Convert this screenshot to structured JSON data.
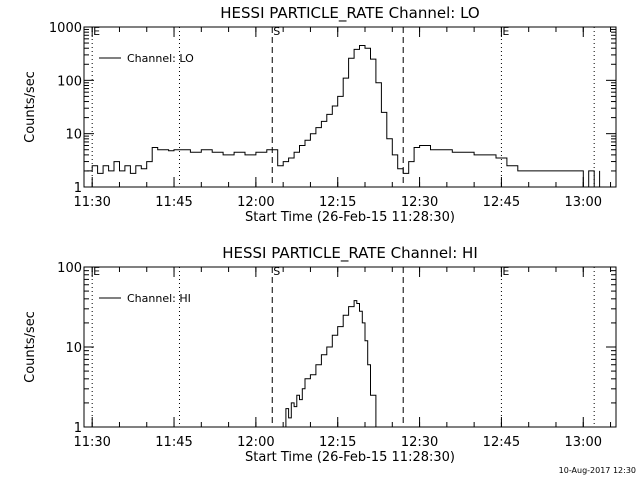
{
  "chart_data": [
    {
      "type": "line",
      "title": "HESSI PARTICLE_RATE Channel: LO",
      "xlabel": "Start Time (26-Feb-15 11:28:30)",
      "ylabel": "Counts/sec",
      "yscale": "log",
      "xlim": [
        "11:28:30",
        "13:06:00"
      ],
      "ylim": [
        1,
        1000
      ],
      "x_ticks": [
        "11:30",
        "11:45",
        "12:00",
        "12:15",
        "12:30",
        "12:45",
        "13:00"
      ],
      "y_ticks": [
        "1",
        "10",
        "100",
        "1000"
      ],
      "legend": "top-left",
      "markers": [
        {
          "label": "E",
          "time": "11:30",
          "style": "dotted"
        },
        {
          "label": "",
          "time": "11:46",
          "style": "dotted"
        },
        {
          "label": "S",
          "time": "12:03",
          "style": "dashed"
        },
        {
          "label": "",
          "time": "12:27",
          "style": "dashed"
        },
        {
          "label": "E",
          "time": "12:45",
          "style": "dotted"
        },
        {
          "label": "",
          "time": "13:02",
          "style": "dotted"
        }
      ],
      "series": [
        {
          "name": "Channel: LO",
          "x": [
            "11:29",
            "11:30",
            "11:31",
            "11:32",
            "11:33",
            "11:34",
            "11:35",
            "11:36",
            "11:37",
            "11:38",
            "11:39",
            "11:40",
            "11:41",
            "11:42",
            "11:43",
            "11:44",
            "11:45",
            "11:46",
            "11:48",
            "11:50",
            "11:52",
            "11:54",
            "11:56",
            "11:58",
            "12:00",
            "12:02",
            "12:03",
            "12:04",
            "12:05",
            "12:06",
            "12:07",
            "12:08",
            "12:09",
            "12:10",
            "12:11",
            "12:12",
            "12:13",
            "12:14",
            "12:15",
            "12:16",
            "12:17",
            "12:18",
            "12:19",
            "12:20",
            "12:21",
            "12:22",
            "12:23",
            "12:24",
            "12:25",
            "12:26",
            "12:27",
            "12:28",
            "12:29",
            "12:30",
            "12:32",
            "12:34",
            "12:36",
            "12:38",
            "12:40",
            "12:42",
            "12:44",
            "12:46",
            "12:48",
            "12:50",
            "12:52",
            "12:54",
            "12:56",
            "12:58",
            "13:00",
            "13:01",
            "13:02",
            "13:03"
          ],
          "values": [
            2,
            2.5,
            1.8,
            2.5,
            2,
            3,
            2,
            2.5,
            1.8,
            2.5,
            2.2,
            3,
            5.5,
            5,
            5,
            4.8,
            5,
            5,
            4.5,
            5,
            4.5,
            4,
            4.5,
            4,
            4.5,
            5,
            5,
            2.5,
            3,
            3.5,
            4.5,
            6,
            7.5,
            10,
            13,
            17,
            23,
            33,
            50,
            110,
            260,
            380,
            450,
            400,
            250,
            90,
            25,
            8,
            4,
            2.2,
            1.8,
            3,
            5.5,
            6,
            5,
            5,
            4.5,
            4.5,
            4,
            4,
            3.5,
            2.5,
            2,
            2,
            2,
            2,
            2,
            2,
            1,
            2,
            1,
            2
          ]
        }
      ]
    },
    {
      "type": "line",
      "title": "HESSI PARTICLE_RATE Channel: HI",
      "xlabel": "Start Time (26-Feb-15 11:28:30)",
      "ylabel": "Counts/sec",
      "yscale": "log",
      "xlim": [
        "11:28:30",
        "13:06:00"
      ],
      "ylim": [
        1,
        100
      ],
      "x_ticks": [
        "11:30",
        "11:45",
        "12:00",
        "12:15",
        "12:30",
        "12:45",
        "13:00"
      ],
      "y_ticks": [
        "1",
        "10",
        "100"
      ],
      "legend": "top-left",
      "markers": [
        {
          "label": "E",
          "time": "11:30",
          "style": "dotted"
        },
        {
          "label": "",
          "time": "11:46",
          "style": "dotted"
        },
        {
          "label": "S",
          "time": "12:03",
          "style": "dashed"
        },
        {
          "label": "",
          "time": "12:27",
          "style": "dashed"
        },
        {
          "label": "E",
          "time": "12:45",
          "style": "dotted"
        },
        {
          "label": "",
          "time": "13:02",
          "style": "dotted"
        }
      ],
      "series": [
        {
          "name": "Channel: HI",
          "x": [
            "12:05",
            "12:05:30",
            "12:06",
            "12:06:30",
            "12:07",
            "12:07:30",
            "12:08",
            "12:08:30",
            "12:09",
            "12:10",
            "12:11",
            "12:12",
            "12:13",
            "12:14",
            "12:15",
            "12:16",
            "12:17",
            "12:18",
            "12:18:30",
            "12:19",
            "12:19:30",
            "12:20",
            "12:20:30",
            "12:21",
            "12:22"
          ],
          "values": [
            1,
            1.7,
            1.3,
            2,
            1.8,
            2.5,
            2.2,
            3,
            4,
            4.5,
            6,
            8,
            10,
            14,
            18,
            25,
            32,
            38,
            35,
            28,
            20,
            12,
            6,
            2.5,
            1
          ]
        }
      ]
    }
  ],
  "footer": {
    "timestamp": "10-Aug-2017 12:30"
  }
}
